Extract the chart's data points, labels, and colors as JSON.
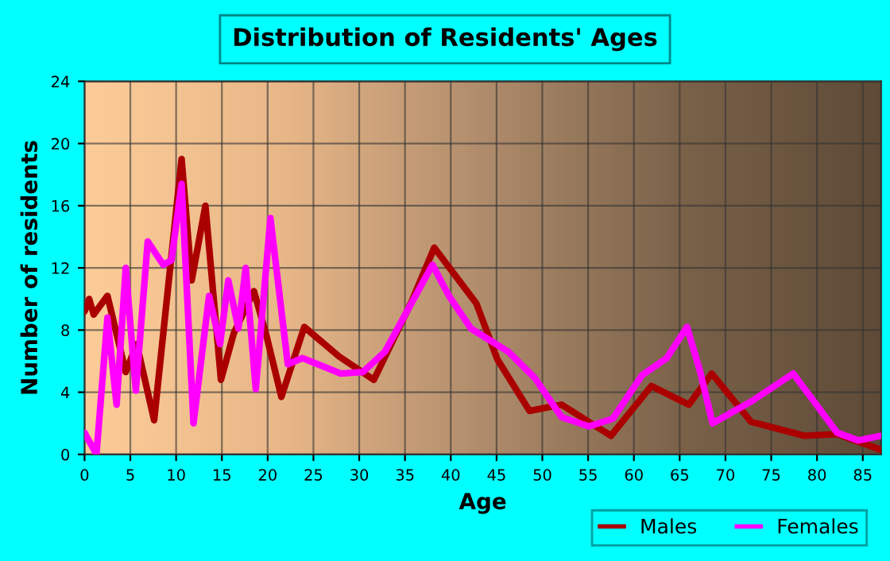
{
  "chart_data": {
    "type": "line",
    "title": "Distribution of Residents' Ages",
    "xlabel": "Age",
    "ylabel": "Number of residents",
    "xlim": [
      0,
      87
    ],
    "xticks": [
      0,
      5,
      10,
      15,
      20,
      25,
      30,
      35,
      40,
      45,
      50,
      55,
      60,
      65,
      70,
      75,
      80,
      85
    ],
    "ylim": [
      0,
      24
    ],
    "yticks": [
      0,
      4,
      8,
      12,
      16,
      20,
      24
    ],
    "grid": true,
    "legend": "bottom right",
    "marker": "none",
    "line_style": "solid",
    "series": [
      {
        "name": "Males",
        "color": "#aa0000",
        "x": [
          0,
          0.5,
          1,
          2.5,
          4.5,
          5.7,
          7.6,
          10.6,
          11.7,
          13.2,
          14.9,
          16.3,
          18.5,
          19.8,
          21.5,
          24,
          27.8,
          31.6,
          35.7,
          38.2,
          42.8,
          45.1,
          48.6,
          52.1,
          57.5,
          61.9,
          66,
          68.5,
          72.8,
          78.6,
          82.2,
          87
        ],
        "values": [
          9.2,
          10,
          9,
          10.2,
          5.3,
          7.1,
          2.2,
          19,
          11.2,
          16,
          4.8,
          7.8,
          10.5,
          7.8,
          3.7,
          8.2,
          6.3,
          4.8,
          9.8,
          13.3,
          9.7,
          6.1,
          2.8,
          3.2,
          1.2,
          4.4,
          3.2,
          5.2,
          2.1,
          1.2,
          1.3,
          0.3
        ]
      },
      {
        "name": "Females",
        "color": "#ff00ff",
        "x": [
          0,
          1.3,
          2.5,
          3.5,
          4.5,
          5.6,
          6.9,
          8.6,
          9.5,
          10.6,
          11.9,
          13.6,
          14.8,
          15.7,
          16.8,
          17.6,
          18.7,
          20.3,
          22.2,
          23.8,
          28,
          30.4,
          32.8,
          38,
          39.8,
          42.2,
          46.3,
          49.2,
          52.1,
          55.1,
          57.7,
          60.9,
          63.6,
          65.8,
          67.2,
          68.6,
          72.8,
          77.4,
          82.2,
          84.5,
          87
        ],
        "values": [
          1.4,
          0,
          8.8,
          3.2,
          12,
          4.1,
          13.7,
          12.2,
          12.5,
          17.4,
          2,
          10.2,
          7.1,
          11.2,
          8.1,
          12,
          4.2,
          15.2,
          5.8,
          6.2,
          5.2,
          5.3,
          6.6,
          12.2,
          10.2,
          8.1,
          6.6,
          4.9,
          2.4,
          1.8,
          2.3,
          5.1,
          6.2,
          8.2,
          5.4,
          2,
          3.4,
          5.2,
          1.4,
          0.9,
          1.2
        ]
      }
    ]
  }
}
